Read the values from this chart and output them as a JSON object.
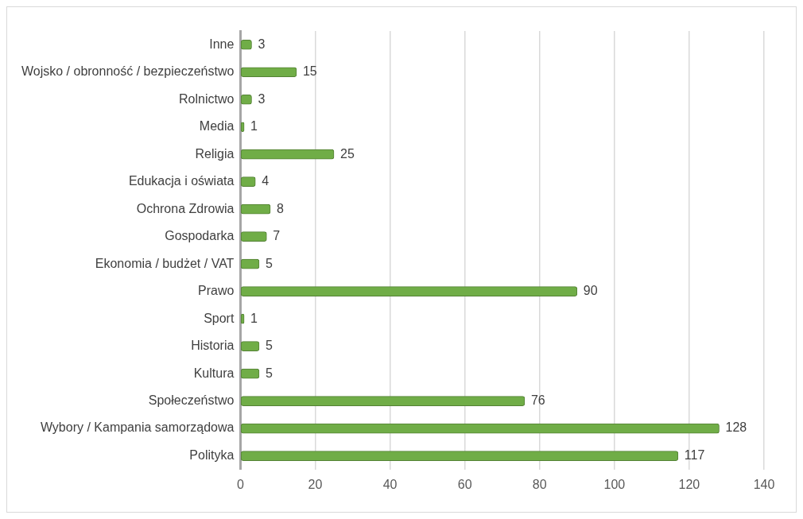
{
  "chart_data": {
    "type": "bar",
    "orientation": "horizontal",
    "categories": [
      "Inne",
      "Wojsko / obronność / bezpieczeństwo",
      "Rolnictwo",
      "Media",
      "Religia",
      "Edukacja i oświata",
      "Ochrona Zdrowia",
      "Gospodarka",
      "Ekonomia / budżet / VAT",
      "Prawo",
      "Sport",
      "Historia",
      "Kultura",
      "Społeczeństwo",
      "Wybory / Kampania samorządowa",
      "Polityka"
    ],
    "values": [
      3,
      15,
      3,
      1,
      25,
      4,
      8,
      7,
      5,
      90,
      1,
      5,
      5,
      76,
      128,
      117
    ],
    "color": "#70ad47",
    "xlim": [
      0,
      140
    ],
    "xticks": [
      0,
      20,
      40,
      60,
      80,
      100,
      120,
      140
    ],
    "grid": "x",
    "legend": false,
    "data_labels": true
  }
}
